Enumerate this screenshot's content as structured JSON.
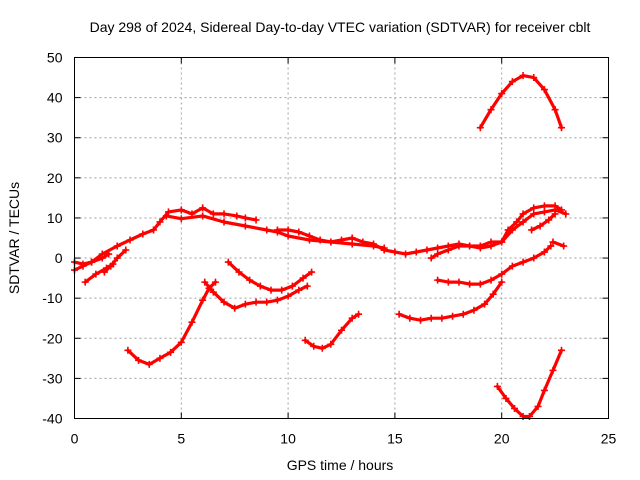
{
  "chart_data": {
    "type": "scatter",
    "title": "Day 298 of 2024, Sidereal Day-to-day VTEC variation (SDTVAR) for receiver cblt",
    "xlabel": "GPS time / hours",
    "ylabel": "SDTVAR / TECUs",
    "xlim": [
      0,
      25
    ],
    "ylim": [
      -40,
      50
    ],
    "xticks": [
      0,
      5,
      10,
      15,
      20,
      25
    ],
    "yticks": [
      -40,
      -30,
      -20,
      -10,
      0,
      10,
      20,
      30,
      40,
      50
    ],
    "grid": true,
    "marker_color": "#ff0000",
    "series": [
      {
        "name": "track-1",
        "points": [
          [
            0.0,
            -3
          ],
          [
            0.4,
            -2
          ],
          [
            0.8,
            -1
          ],
          [
            1.3,
            1
          ],
          [
            2.0,
            3
          ],
          [
            2.6,
            4.5
          ],
          [
            3.2,
            6
          ],
          [
            3.7,
            7
          ],
          [
            4.0,
            9
          ],
          [
            4.4,
            11.5
          ],
          [
            5.0,
            12
          ],
          [
            5.5,
            11
          ],
          [
            6.0,
            12.5
          ],
          [
            6.5,
            11
          ],
          [
            7.0,
            11
          ],
          [
            7.6,
            10.5
          ],
          [
            8.0,
            10
          ],
          [
            8.5,
            9.5
          ]
        ]
      },
      {
        "name": "track-2",
        "points": [
          [
            0.0,
            -1
          ],
          [
            0.4,
            -1.5
          ],
          [
            0.8,
            -1
          ],
          [
            1.3,
            0
          ],
          [
            1.6,
            1
          ]
        ]
      },
      {
        "name": "track-3",
        "points": [
          [
            0.5,
            -6
          ],
          [
            1.0,
            -4
          ],
          [
            1.5,
            -2.5
          ],
          [
            1.8,
            -1.5
          ]
        ]
      },
      {
        "name": "track-4",
        "points": [
          [
            1.4,
            -3.5
          ],
          [
            1.7,
            -2
          ],
          [
            2.0,
            0
          ],
          [
            2.4,
            2
          ]
        ]
      },
      {
        "name": "track-5",
        "points": [
          [
            4.3,
            10.5
          ],
          [
            5.0,
            9.8
          ],
          [
            6.0,
            10.5
          ],
          [
            7.0,
            9
          ],
          [
            8.0,
            8
          ],
          [
            9.0,
            7
          ],
          [
            9.5,
            6.5
          ],
          [
            10.0,
            5.5
          ],
          [
            11.0,
            4.5
          ],
          [
            12.0,
            4
          ],
          [
            13.0,
            3.5
          ],
          [
            14.0,
            3
          ],
          [
            14.5,
            2.5
          ]
        ]
      },
      {
        "name": "track-6",
        "points": [
          [
            9.5,
            7
          ],
          [
            10.0,
            7
          ],
          [
            10.5,
            6.5
          ],
          [
            11.0,
            5.5
          ],
          [
            11.5,
            4.5
          ],
          [
            12.0,
            4
          ],
          [
            12.5,
            4.5
          ],
          [
            13.0,
            5
          ],
          [
            13.5,
            4
          ],
          [
            14.0,
            3.5
          ],
          [
            14.5,
            2
          ]
        ]
      },
      {
        "name": "track-7",
        "points": [
          [
            14.5,
            2
          ],
          [
            15.0,
            1.5
          ],
          [
            15.5,
            1
          ],
          [
            16.0,
            1.5
          ],
          [
            16.5,
            2
          ],
          [
            17.0,
            2.5
          ],
          [
            17.5,
            3
          ],
          [
            18.0,
            3.5
          ],
          [
            18.5,
            3
          ],
          [
            19.0,
            3
          ],
          [
            19.5,
            4
          ],
          [
            20.0,
            4
          ],
          [
            20.5,
            7
          ],
          [
            21.0,
            9
          ],
          [
            21.5,
            11
          ],
          [
            22.0,
            11.5
          ],
          [
            22.5,
            12
          ],
          [
            23.0,
            11
          ]
        ]
      },
      {
        "name": "track-8",
        "points": [
          [
            16.7,
            0
          ],
          [
            17.0,
            1
          ],
          [
            17.5,
            2
          ],
          [
            18.0,
            3
          ],
          [
            18.5,
            3
          ],
          [
            19.0,
            2.5
          ],
          [
            19.5,
            3
          ],
          [
            20.0,
            4
          ],
          [
            20.3,
            7
          ],
          [
            20.7,
            9
          ],
          [
            21.0,
            11
          ],
          [
            21.5,
            12.5
          ],
          [
            22.0,
            13
          ],
          [
            22.5,
            13
          ],
          [
            22.8,
            12
          ]
        ]
      },
      {
        "name": "track-9",
        "points": [
          [
            21.4,
            7
          ],
          [
            21.8,
            8
          ],
          [
            22.2,
            9.5
          ],
          [
            22.5,
            11
          ]
        ]
      },
      {
        "name": "track-10",
        "points": [
          [
            22.4,
            4
          ],
          [
            22.9,
            3
          ]
        ]
      },
      {
        "name": "track-11",
        "points": [
          [
            19.0,
            32.5
          ],
          [
            19.5,
            37
          ],
          [
            20.0,
            41
          ],
          [
            20.5,
            44
          ],
          [
            21.0,
            45.5
          ],
          [
            21.5,
            45
          ],
          [
            22.0,
            42
          ],
          [
            22.5,
            37
          ],
          [
            22.8,
            32.5
          ]
        ]
      },
      {
        "name": "track-12",
        "points": [
          [
            2.5,
            -23
          ],
          [
            3.0,
            -25.5
          ],
          [
            3.5,
            -26.5
          ],
          [
            4.0,
            -25
          ],
          [
            4.5,
            -23.5
          ],
          [
            5.0,
            -21
          ],
          [
            5.5,
            -16
          ],
          [
            6.0,
            -10.5
          ],
          [
            6.3,
            -7.5
          ],
          [
            6.6,
            -6
          ]
        ]
      },
      {
        "name": "track-13",
        "points": [
          [
            6.1,
            -6
          ],
          [
            6.5,
            -8.5
          ],
          [
            7.0,
            -11
          ],
          [
            7.5,
            -12.5
          ],
          [
            8.0,
            -11.5
          ],
          [
            8.5,
            -11
          ],
          [
            9.0,
            -11
          ],
          [
            9.5,
            -10.5
          ],
          [
            10.0,
            -9.5
          ],
          [
            10.5,
            -8
          ],
          [
            10.9,
            -7
          ]
        ]
      },
      {
        "name": "track-14",
        "points": [
          [
            7.2,
            -1
          ],
          [
            7.7,
            -3.5
          ],
          [
            8.2,
            -5.5
          ],
          [
            8.7,
            -7
          ],
          [
            9.2,
            -8
          ],
          [
            9.7,
            -8
          ],
          [
            10.2,
            -7
          ],
          [
            10.7,
            -5
          ],
          [
            11.1,
            -3.5
          ]
        ]
      },
      {
        "name": "track-15",
        "points": [
          [
            10.8,
            -20.5
          ],
          [
            11.2,
            -22
          ],
          [
            11.6,
            -22.5
          ],
          [
            12.0,
            -21.5
          ],
          [
            12.5,
            -18
          ],
          [
            13.0,
            -15
          ],
          [
            13.3,
            -14
          ]
        ]
      },
      {
        "name": "track-16",
        "points": [
          [
            15.2,
            -14
          ],
          [
            15.7,
            -15
          ],
          [
            16.2,
            -15.5
          ],
          [
            16.7,
            -15
          ],
          [
            17.2,
            -15
          ],
          [
            17.7,
            -14.5
          ],
          [
            18.2,
            -14
          ],
          [
            18.7,
            -13
          ],
          [
            19.2,
            -11.5
          ],
          [
            19.6,
            -9
          ],
          [
            20.0,
            -6
          ]
        ]
      },
      {
        "name": "track-17",
        "points": [
          [
            17.0,
            -5.5
          ],
          [
            17.5,
            -6
          ],
          [
            18.0,
            -6
          ],
          [
            18.5,
            -6.5
          ],
          [
            19.0,
            -6.5
          ],
          [
            19.5,
            -5.5
          ],
          [
            20.0,
            -4
          ],
          [
            20.5,
            -2
          ],
          [
            21.0,
            -1
          ],
          [
            21.5,
            0
          ],
          [
            22.0,
            1.5
          ],
          [
            22.3,
            3
          ]
        ]
      },
      {
        "name": "track-18",
        "points": [
          [
            19.8,
            -32
          ],
          [
            20.2,
            -35
          ],
          [
            20.6,
            -37.5
          ],
          [
            21.0,
            -39.5
          ],
          [
            21.3,
            -39.5
          ],
          [
            21.7,
            -37
          ],
          [
            22.0,
            -33
          ],
          [
            22.4,
            -28
          ],
          [
            22.8,
            -23
          ]
        ]
      }
    ]
  }
}
